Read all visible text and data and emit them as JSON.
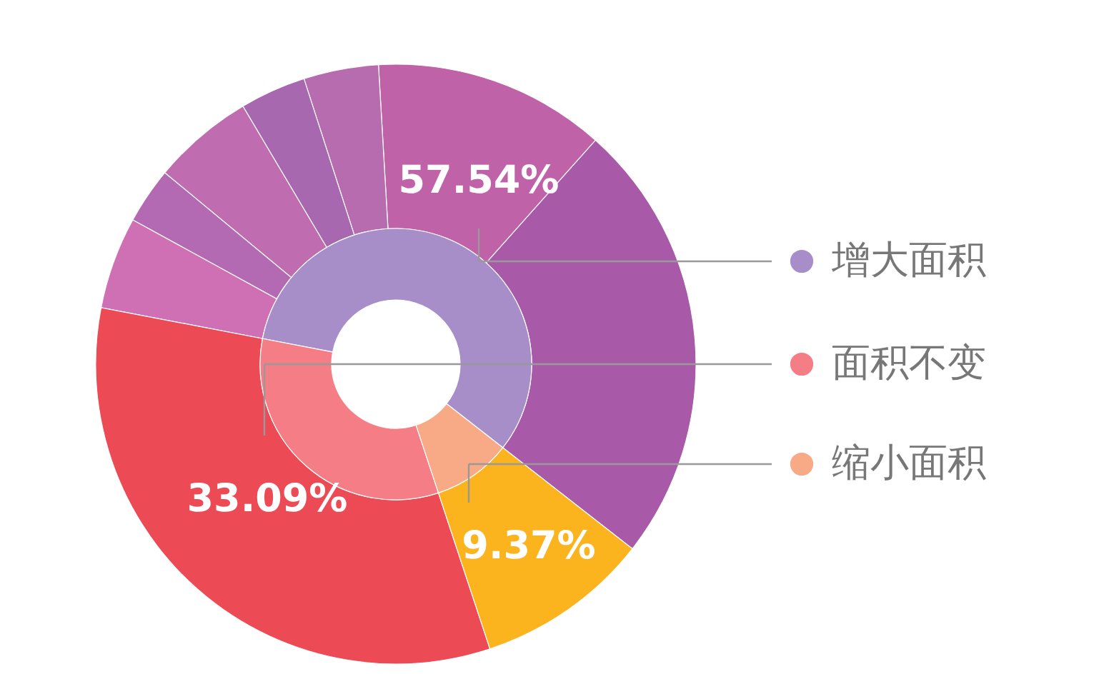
{
  "chart_data": {
    "type": "donut",
    "categories": [
      "增大面积",
      null,
      null,
      null,
      null,
      null,
      null,
      "面积不变",
      "缩小面积"
    ],
    "value_labels": [
      "57.54%",
      null,
      null,
      null,
      null,
      null,
      null,
      "33.09%",
      "9.37%"
    ],
    "legend": "right",
    "series": [
      {
        "values": [
          57.54,
          null,
          null,
          null,
          null,
          null,
          null,
          33.09,
          9.37
        ],
        "colors": [
          "#a88ec8",
          null,
          null,
          null,
          null,
          null,
          null,
          "#f57d86",
          "#f8aa86"
        ]
      },
      {
        "values": [
          23.98,
          12.5,
          4.03,
          3.56,
          5.47,
          3.03,
          4.97,
          33.09,
          9.37
        ],
        "colors": [
          "#a85aa8",
          "#c062a8",
          "#b86cb0",
          "#a868b0",
          "#c06cb0",
          "#b46ab2",
          "#d070b4",
          "#ec4a55",
          "#fbb41e"
        ]
      }
    ]
  }
}
